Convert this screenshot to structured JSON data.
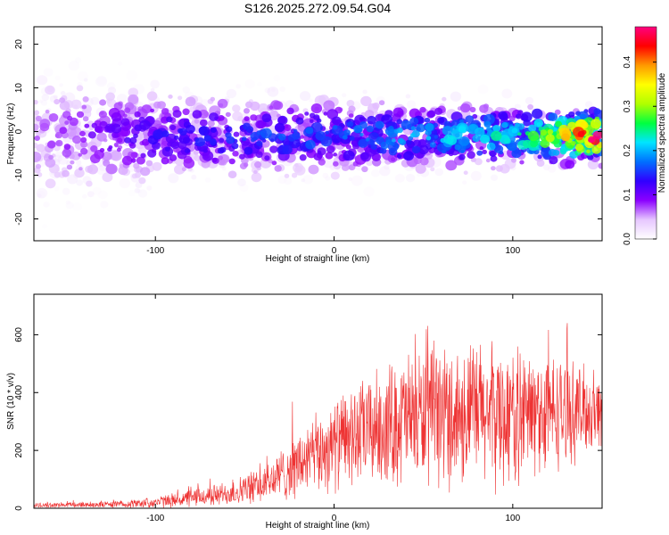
{
  "figure_title": "S126.2025.272.09.54.G04",
  "chart_data": [
    {
      "type": "heatmap",
      "xlabel": "Height of straight line (km)",
      "ylabel": "Frequency (Hz)",
      "xlim": [
        -168,
        150
      ],
      "ylim": [
        -25,
        24
      ],
      "x_ticks": [
        -100,
        0,
        100
      ],
      "y_ticks": [
        -20,
        -10,
        0,
        10,
        20
      ],
      "colorbar": {
        "label": "Normalized spectral amplitude",
        "range": [
          0.0,
          0.48
        ],
        "ticks": [
          "0.0",
          "0.1",
          "0.2",
          "0.3",
          "0.4"
        ],
        "colors": [
          "#ffffff",
          "#e6c6ff",
          "#8b00ff",
          "#3000ff",
          "#0070ff",
          "#00e5ff",
          "#00ff40",
          "#b0ff00",
          "#ffff00",
          "#ff9900",
          "#ff0000",
          "#ff0080"
        ]
      },
      "profile": {
        "center_freq_hz": -1,
        "half_width_hz_at_x": [
          {
            "x": -168,
            "w": 13
          },
          {
            "x": -100,
            "w": 9
          },
          {
            "x": 0,
            "w": 7
          },
          {
            "x": 100,
            "w": 6
          },
          {
            "x": 150,
            "w": 5
          }
        ],
        "peak_amplitude_at_x": [
          {
            "x": -168,
            "a": 0.06
          },
          {
            "x": -100,
            "a": 0.12
          },
          {
            "x": 0,
            "a": 0.16
          },
          {
            "x": 100,
            "a": 0.22
          },
          {
            "x": 125,
            "a": 0.3
          },
          {
            "x": 145,
            "a": 0.46
          }
        ]
      }
    },
    {
      "type": "line",
      "xlabel": "Height of straight line (km)",
      "ylabel": "SNR (10 * v/v)",
      "xlim": [
        -168,
        150
      ],
      "ylim": [
        0,
        740
      ],
      "x_ticks": [
        -100,
        0,
        100
      ],
      "y_ticks": [
        0,
        200,
        400,
        600
      ],
      "color": "#ee3333",
      "envelope": [
        {
          "x": -168,
          "mean": 10,
          "spread": 8
        },
        {
          "x": -120,
          "mean": 14,
          "spread": 12
        },
        {
          "x": -100,
          "mean": 20,
          "spread": 18
        },
        {
          "x": -80,
          "mean": 35,
          "spread": 30
        },
        {
          "x": -60,
          "mean": 50,
          "spread": 40
        },
        {
          "x": -40,
          "mean": 80,
          "spread": 60
        },
        {
          "x": -20,
          "mean": 150,
          "spread": 110
        },
        {
          "x": 0,
          "mean": 220,
          "spread": 150
        },
        {
          "x": 20,
          "mean": 270,
          "spread": 180
        },
        {
          "x": 40,
          "mean": 310,
          "spread": 220
        },
        {
          "x": 60,
          "mean": 320,
          "spread": 230
        },
        {
          "x": 80,
          "mean": 330,
          "spread": 240
        },
        {
          "x": 100,
          "mean": 320,
          "spread": 230
        },
        {
          "x": 120,
          "mean": 330,
          "spread": 200
        },
        {
          "x": 150,
          "mean": 340,
          "spread": 120
        }
      ]
    }
  ]
}
